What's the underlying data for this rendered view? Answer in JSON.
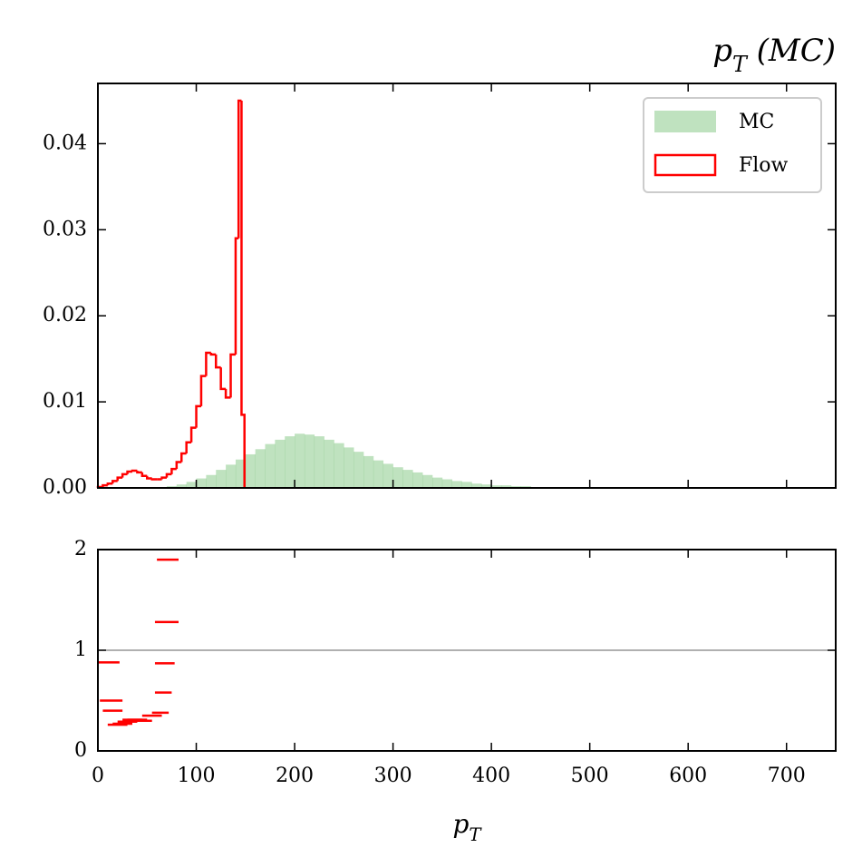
{
  "chart_data": [
    {
      "type": "histogram",
      "title": "pT (MC)",
      "xlim": [
        0,
        750
      ],
      "ylim": [
        0,
        0.047
      ],
      "xticks": [
        0,
        100,
        200,
        300,
        400,
        500,
        600,
        700
      ],
      "yticks": [
        {
          "value": 0,
          "label": "0.00"
        },
        {
          "value": 0.01,
          "label": "0.01"
        },
        {
          "value": 0.02,
          "label": "0.02"
        },
        {
          "value": 0.03,
          "label": "0.03"
        },
        {
          "value": 0.04,
          "label": "0.04"
        }
      ],
      "legend": "upper right",
      "series": [
        {
          "name": "MC",
          "color": "#2ca02c",
          "alpha": 0.3,
          "histtype": "stepfilled",
          "bins": [
            0,
            10,
            20,
            30,
            40,
            50,
            60,
            70,
            80,
            90,
            100,
            110,
            120,
            130,
            140,
            150,
            160,
            170,
            180,
            190,
            200,
            210,
            220,
            230,
            240,
            250,
            260,
            270,
            280,
            290,
            300,
            310,
            320,
            330,
            340,
            350,
            360,
            370,
            380,
            390,
            400,
            410,
            420,
            430,
            440,
            450,
            460,
            470,
            480,
            490,
            500,
            510,
            520,
            530,
            540,
            550,
            560,
            570,
            580,
            590,
            600,
            610,
            620,
            630,
            640,
            650,
            660,
            670,
            680,
            690,
            700,
            710,
            720,
            730,
            740,
            750
          ],
          "values": [
            0,
            0,
            0,
            0,
            0,
            5e-05,
            0.0001,
            0.0002,
            0.0004,
            0.0007,
            0.0011,
            0.0015,
            0.0021,
            0.0027,
            0.0033,
            0.0039,
            0.0045,
            0.0051,
            0.0056,
            0.006,
            0.0063,
            0.0062,
            0.006,
            0.0056,
            0.0052,
            0.0047,
            0.0042,
            0.0037,
            0.0032,
            0.0028,
            0.0024,
            0.0021,
            0.0018,
            0.0015,
            0.0012,
            0.001,
            0.0008,
            0.0007,
            0.0005,
            0.0004,
            0.0003,
            0.0003,
            0.0002,
            0.0002,
            0.0001,
            0.0001,
            0,
            0,
            0,
            0,
            0,
            0,
            0,
            0,
            0,
            0,
            0,
            0,
            0,
            0,
            0,
            0,
            0,
            0,
            0,
            0,
            0,
            0,
            0,
            0,
            0,
            0,
            0,
            0,
            0
          ]
        },
        {
          "name": "Flow",
          "color": "#ff0000",
          "histtype": "step",
          "bins": [
            0,
            5,
            10,
            15,
            20,
            25,
            30,
            35,
            40,
            45,
            50,
            55,
            60,
            65,
            70,
            75,
            80,
            85,
            90,
            95,
            100,
            105,
            110,
            115,
            120,
            125,
            130,
            135,
            140,
            143,
            146,
            149
          ],
          "values": [
            0.0001,
            0.0003,
            0.0005,
            0.0008,
            0.0012,
            0.0016,
            0.0019,
            0.002,
            0.0018,
            0.0014,
            0.0011,
            0.001,
            0.001,
            0.0012,
            0.0016,
            0.0022,
            0.003,
            0.004,
            0.0053,
            0.007,
            0.0095,
            0.013,
            0.0157,
            0.0155,
            0.014,
            0.0115,
            0.0105,
            0.0155,
            0.029,
            0.045,
            0.0085
          ]
        }
      ]
    },
    {
      "type": "ratio",
      "xlabel": "pT",
      "xlim": [
        0,
        750
      ],
      "ylim": [
        0,
        2
      ],
      "xticks": [
        0,
        100,
        200,
        300,
        400,
        500,
        600,
        700
      ],
      "yticks": [
        0,
        1,
        2
      ],
      "hline": 1,
      "color": "#ff0000",
      "xmin": [
        0,
        2,
        5,
        10,
        15,
        20,
        25,
        30,
        35,
        45,
        55,
        58,
        58,
        58,
        60
      ],
      "xmax": [
        22,
        25,
        25,
        30,
        35,
        40,
        45,
        50,
        55,
        65,
        72,
        75,
        78,
        82,
        82
      ],
      "values": [
        0.88,
        0.5,
        0.4,
        0.26,
        0.27,
        0.29,
        0.31,
        0.31,
        0.3,
        0.35,
        0.38,
        0.58,
        0.87,
        1.28,
        1.9
      ]
    }
  ]
}
